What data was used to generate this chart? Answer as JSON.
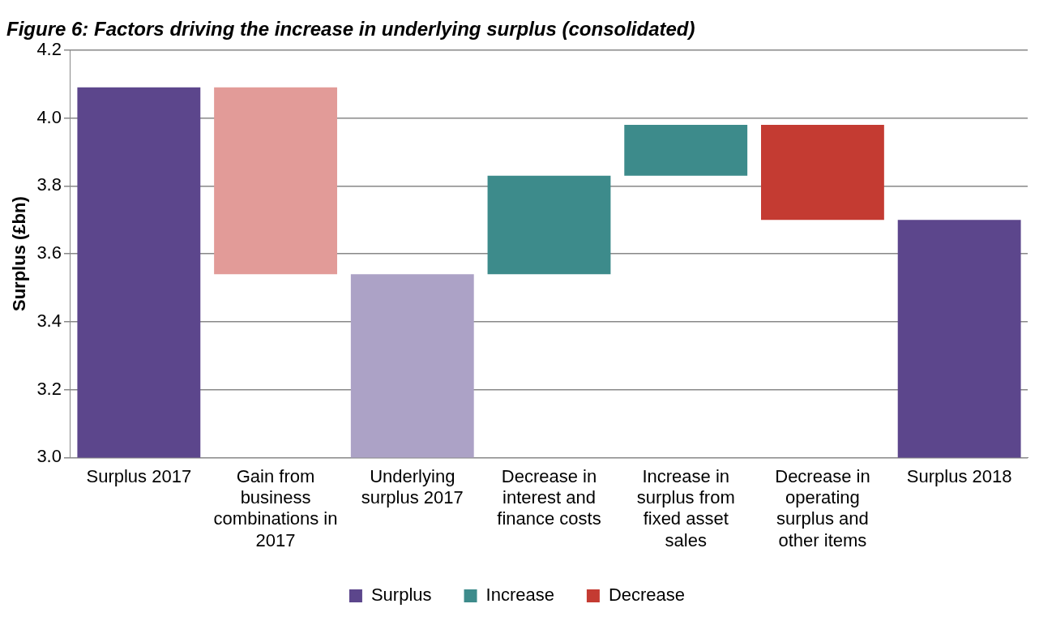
{
  "chart_data": {
    "type": "bar",
    "title": "Figure 6: Factors driving the increase in underlying surplus (consolidated)",
    "categories": [
      "Surplus 2017",
      "Gain from business combinations in 2017",
      "Underlying surplus 2017",
      "Decrease in interest and finance costs",
      "Increase in surplus from fixed asset sales",
      "Decrease in operating surplus and other items",
      "Surplus 2018"
    ],
    "series": [
      {
        "name": "Surplus",
        "color": "#5c468c",
        "values": [
          4.09,
          null,
          3.54,
          null,
          null,
          null,
          3.7
        ],
        "colors": [
          "#5c468c",
          null,
          "#aca2c6",
          null,
          null,
          null,
          "#5c468c"
        ]
      },
      {
        "name": "Increase",
        "color": "#3d8b8b",
        "values": [
          null,
          null,
          null,
          0.29,
          0.15,
          null,
          null
        ],
        "base": [
          null,
          null,
          null,
          3.54,
          3.83,
          null,
          null
        ],
        "colors": [
          null,
          null,
          null,
          "#3d8b8b",
          "#3d8b8b",
          null,
          null
        ]
      },
      {
        "name": "Decrease",
        "color": "#c43b32",
        "values": [
          null,
          0.55,
          null,
          null,
          null,
          0.28,
          null
        ],
        "base": [
          null,
          3.54,
          null,
          null,
          null,
          3.7,
          null
        ],
        "colors": [
          null,
          "#e29b98",
          null,
          null,
          null,
          "#c43b32",
          null
        ]
      }
    ],
    "ylabel": "Surplus (£bn)",
    "ylim": [
      3.0,
      4.2
    ],
    "yticks": [
      {
        "value": 3.0,
        "label": "3.0"
      },
      {
        "value": 3.2,
        "label": "3.2"
      },
      {
        "value": 3.4,
        "label": "3.4"
      },
      {
        "value": 3.6,
        "label": "3.6"
      },
      {
        "value": 3.8,
        "label": "3.8"
      },
      {
        "value": 4.0,
        "label": "4.0"
      },
      {
        "value": 4.2,
        "label": "4.2"
      }
    ],
    "grid": "y",
    "legend": "bottom"
  }
}
